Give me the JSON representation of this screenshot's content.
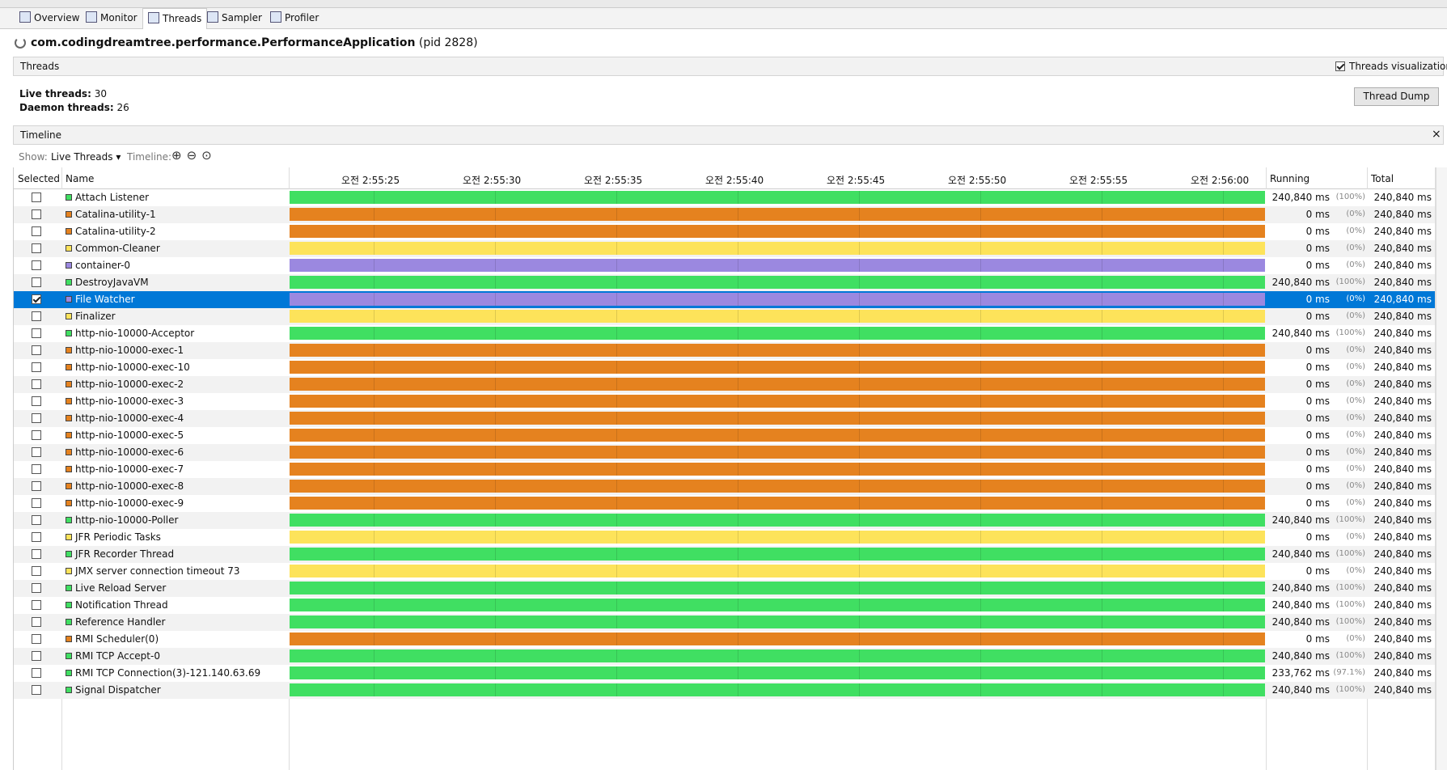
{
  "tabs": [
    "Overview",
    "Monitor",
    "Threads",
    "Sampler",
    "Profiler"
  ],
  "app": {
    "name": "com.codingdreamtree.performance.PerformanceApplication",
    "pid": "(pid 2828)"
  },
  "threads_panel": {
    "title": "Threads",
    "visualization": "Threads visualization",
    "live_label": "Live threads:",
    "live": 30,
    "daemon_label": "Daemon threads:",
    "daemon": 26,
    "dump_button": "Thread Dump"
  },
  "timeline": {
    "title": "Timeline",
    "show_label": "Show:",
    "show_value": "Live Threads",
    "timeline_label": "Timeline:",
    "ticks": [
      "오전 2:55:25",
      "오전 2:55:30",
      "오전 2:55:35",
      "오전 2:55:40",
      "오전 2:55:45",
      "오전 2:55:50",
      "오전 2:55:55",
      "오전 2:56:00"
    ]
  },
  "table": {
    "columns": [
      "Selected",
      "Name",
      "Running",
      "Total"
    ],
    "rows": [
      {
        "name": "Attach Listener",
        "color": "#40df62",
        "running": "240,840 ms",
        "pct": "(100%)",
        "total": "240,840 ms",
        "selected": false
      },
      {
        "name": "Catalina-utility-1",
        "color": "#e5821f",
        "running": "0 ms",
        "pct": "(0%)",
        "total": "240,840 ms",
        "selected": false
      },
      {
        "name": "Catalina-utility-2",
        "color": "#e5821f",
        "running": "0 ms",
        "pct": "(0%)",
        "total": "240,840 ms",
        "selected": false
      },
      {
        "name": "Common-Cleaner",
        "color": "#fde35a",
        "running": "0 ms",
        "pct": "(0%)",
        "total": "240,840 ms",
        "selected": false
      },
      {
        "name": "container-0",
        "color": "#9b88e0",
        "running": "0 ms",
        "pct": "(0%)",
        "total": "240,840 ms",
        "selected": false
      },
      {
        "name": "DestroyJavaVM",
        "color": "#40df62",
        "running": "240,840 ms",
        "pct": "(100%)",
        "total": "240,840 ms",
        "selected": false
      },
      {
        "name": "File Watcher",
        "color": "#9b88e0",
        "running": "0 ms",
        "pct": "(0%)",
        "total": "240,840 ms",
        "selected": true
      },
      {
        "name": "Finalizer",
        "color": "#fde35a",
        "running": "0 ms",
        "pct": "(0%)",
        "total": "240,840 ms",
        "selected": false
      },
      {
        "name": "http-nio-10000-Acceptor",
        "color": "#40df62",
        "running": "240,840 ms",
        "pct": "(100%)",
        "total": "240,840 ms",
        "selected": false
      },
      {
        "name": "http-nio-10000-exec-1",
        "color": "#e5821f",
        "running": "0 ms",
        "pct": "(0%)",
        "total": "240,840 ms",
        "selected": false
      },
      {
        "name": "http-nio-10000-exec-10",
        "color": "#e5821f",
        "running": "0 ms",
        "pct": "(0%)",
        "total": "240,840 ms",
        "selected": false
      },
      {
        "name": "http-nio-10000-exec-2",
        "color": "#e5821f",
        "running": "0 ms",
        "pct": "(0%)",
        "total": "240,840 ms",
        "selected": false
      },
      {
        "name": "http-nio-10000-exec-3",
        "color": "#e5821f",
        "running": "0 ms",
        "pct": "(0%)",
        "total": "240,840 ms",
        "selected": false
      },
      {
        "name": "http-nio-10000-exec-4",
        "color": "#e5821f",
        "running": "0 ms",
        "pct": "(0%)",
        "total": "240,840 ms",
        "selected": false
      },
      {
        "name": "http-nio-10000-exec-5",
        "color": "#e5821f",
        "running": "0 ms",
        "pct": "(0%)",
        "total": "240,840 ms",
        "selected": false
      },
      {
        "name": "http-nio-10000-exec-6",
        "color": "#e5821f",
        "running": "0 ms",
        "pct": "(0%)",
        "total": "240,840 ms",
        "selected": false
      },
      {
        "name": "http-nio-10000-exec-7",
        "color": "#e5821f",
        "running": "0 ms",
        "pct": "(0%)",
        "total": "240,840 ms",
        "selected": false
      },
      {
        "name": "http-nio-10000-exec-8",
        "color": "#e5821f",
        "running": "0 ms",
        "pct": "(0%)",
        "total": "240,840 ms",
        "selected": false
      },
      {
        "name": "http-nio-10000-exec-9",
        "color": "#e5821f",
        "running": "0 ms",
        "pct": "(0%)",
        "total": "240,840 ms",
        "selected": false
      },
      {
        "name": "http-nio-10000-Poller",
        "color": "#40df62",
        "running": "240,840 ms",
        "pct": "(100%)",
        "total": "240,840 ms",
        "selected": false
      },
      {
        "name": "JFR Periodic Tasks",
        "color": "#fde35a",
        "running": "0 ms",
        "pct": "(0%)",
        "total": "240,840 ms",
        "selected": false
      },
      {
        "name": "JFR Recorder Thread",
        "color": "#40df62",
        "running": "240,840 ms",
        "pct": "(100%)",
        "total": "240,840 ms",
        "selected": false
      },
      {
        "name": "JMX server connection timeout 73",
        "color": "#fde35a",
        "running": "0 ms",
        "pct": "(0%)",
        "total": "240,840 ms",
        "selected": false
      },
      {
        "name": "Live Reload Server",
        "color": "#40df62",
        "running": "240,840 ms",
        "pct": "(100%)",
        "total": "240,840 ms",
        "selected": false
      },
      {
        "name": "Notification Thread",
        "color": "#40df62",
        "running": "240,840 ms",
        "pct": "(100%)",
        "total": "240,840 ms",
        "selected": false
      },
      {
        "name": "Reference Handler",
        "color": "#40df62",
        "running": "240,840 ms",
        "pct": "(100%)",
        "total": "240,840 ms",
        "selected": false
      },
      {
        "name": "RMI Scheduler(0)",
        "color": "#e5821f",
        "running": "0 ms",
        "pct": "(0%)",
        "total": "240,840 ms",
        "selected": false
      },
      {
        "name": "RMI TCP Accept-0",
        "color": "#40df62",
        "running": "240,840 ms",
        "pct": "(100%)",
        "total": "240,840 ms",
        "selected": false
      },
      {
        "name": "RMI TCP Connection(3)-121.140.63.69",
        "color": "#40df62",
        "running": "233,762 ms",
        "pct": "(97.1%)",
        "total": "240,840 ms",
        "selected": false
      },
      {
        "name": "Signal Dispatcher",
        "color": "#40df62",
        "running": "240,840 ms",
        "pct": "(100%)",
        "total": "240,840 ms",
        "selected": false
      }
    ]
  }
}
